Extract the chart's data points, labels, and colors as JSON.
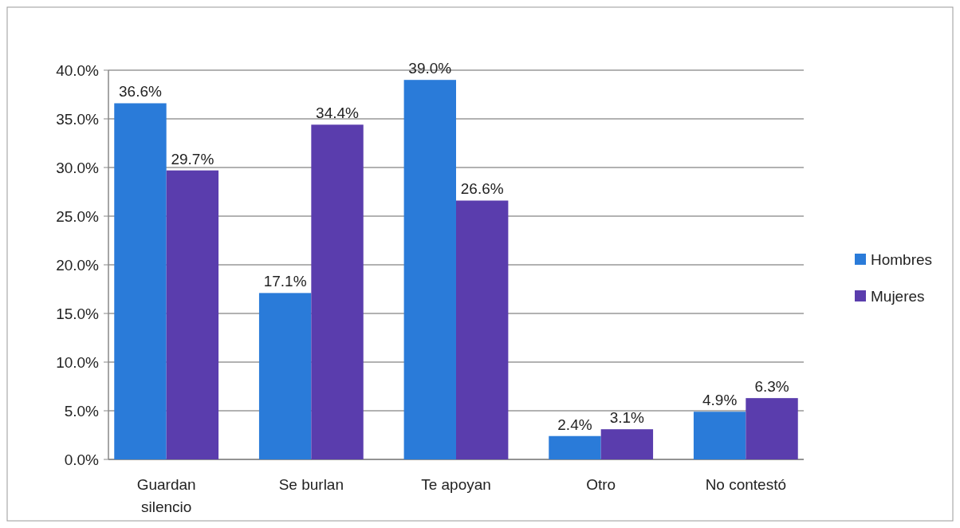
{
  "chart_data": {
    "type": "bar",
    "categories": [
      "Guardan silencio",
      "Se burlan",
      "Te apoyan",
      "Otro",
      "No contestó"
    ],
    "series": [
      {
        "name": "Hombres",
        "color": "#2a7bd9",
        "values": [
          36.6,
          17.1,
          39.0,
          2.4,
          4.9
        ],
        "value_labels": [
          "36.6%",
          "17.1%",
          "39.0%",
          "2.4%",
          "4.9%"
        ]
      },
      {
        "name": "Mujeres",
        "color": "#5a3dad",
        "values": [
          29.7,
          34.4,
          26.6,
          3.1,
          6.3
        ],
        "value_labels": [
          "29.7%",
          "34.4%",
          "26.6%",
          "3.1%",
          "6.3%"
        ]
      }
    ],
    "ylim": [
      0,
      40
    ],
    "yticks": [
      {
        "value": 0,
        "label": "0.0%"
      },
      {
        "value": 5,
        "label": "5.0%"
      },
      {
        "value": 10,
        "label": "10.0%"
      },
      {
        "value": 15,
        "label": "15.0%"
      },
      {
        "value": 20,
        "label": "20.0%"
      },
      {
        "value": 25,
        "label": "25.0%"
      },
      {
        "value": 30,
        "label": "30.0%"
      },
      {
        "value": 35,
        "label": "35.0%"
      },
      {
        "value": 40,
        "label": "40.0%"
      }
    ],
    "grid": "y",
    "legend": "right"
  }
}
